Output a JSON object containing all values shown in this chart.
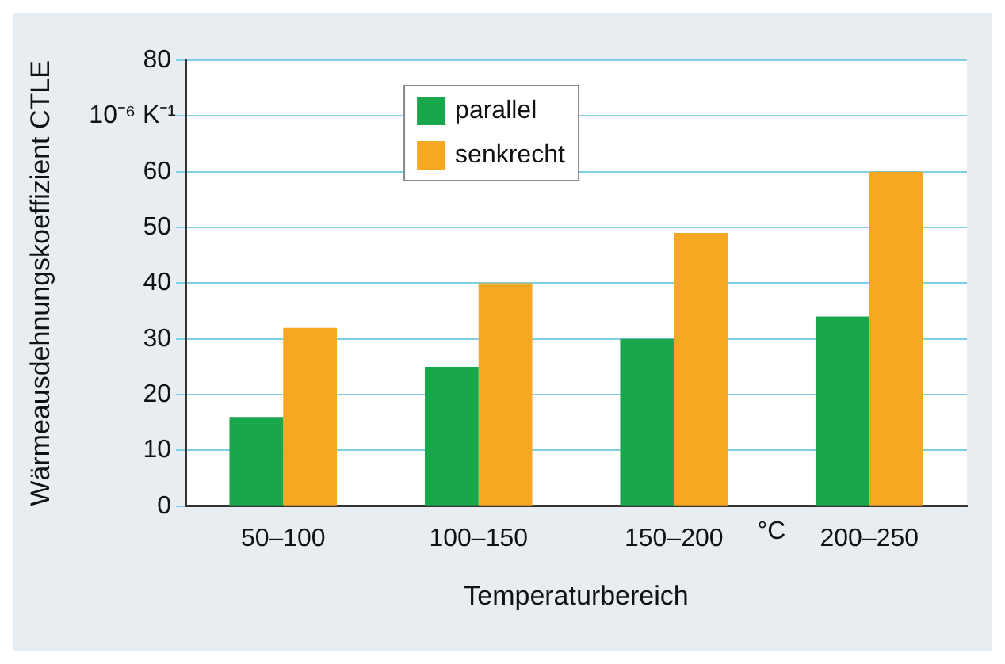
{
  "chart_data": {
    "type": "bar",
    "xlabel": "Temperaturbereich",
    "ylabel": "Wärmeausdehnungskoeffizient CTLE",
    "categories": [
      "50–100",
      "100–150",
      "150–200",
      "200–250"
    ],
    "series": [
      {
        "name": "parallel",
        "color": "#1aa64a",
        "values": [
          16,
          25,
          30,
          34
        ]
      },
      {
        "name": "senkrecht",
        "color": "#f7a823",
        "values": [
          32,
          40,
          49,
          60
        ]
      }
    ],
    "ylim": [
      0,
      80
    ],
    "yticks": [
      0,
      10,
      20,
      30,
      40,
      50,
      60,
      {
        "value": 70,
        "label": null
      },
      80
    ],
    "grid": "y",
    "legend": "top left",
    "annotations": [
      "10⁻⁶ K⁻¹",
      "°C"
    ]
  }
}
